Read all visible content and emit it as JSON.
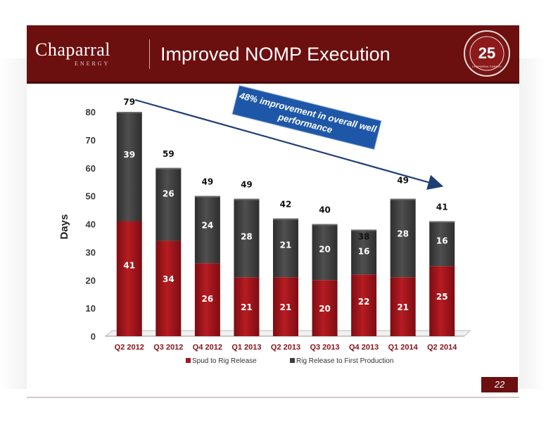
{
  "header": {
    "logo_name": "Chaparral",
    "logo_sub": "ENERGY",
    "title": "Improved NOMP Execution",
    "seal_number": "25",
    "seal_text": "CHAPARRAL ENERGY"
  },
  "page_number": "22",
  "colors": {
    "header_band": "#6b0f0f",
    "series_spud": "#a6171c",
    "series_release": "#3e3e3e",
    "callout_bg": "#1f57a8",
    "arrow": "#1f3f77"
  },
  "callout": {
    "text_line1": "48% improvement in overall well",
    "text_line2": "performance"
  },
  "chart_data": {
    "type": "bar",
    "stacked": true,
    "ylabel": "Days",
    "ylim": [
      0,
      80
    ],
    "yticks": [
      0,
      10,
      20,
      30,
      40,
      50,
      60,
      70,
      80
    ],
    "categories": [
      "Q2 2012",
      "Q3 2012",
      "Q4 2012",
      "Q1 2013",
      "Q2 2013",
      "Q3 2013",
      "Q4 2013",
      "Q1 2014",
      "Q2 2014"
    ],
    "series": [
      {
        "name": "Spud to Rig Release",
        "values": [
          41,
          34,
          26,
          21,
          21,
          20,
          22,
          21,
          25
        ]
      },
      {
        "name": "Rig Release to First Production",
        "values": [
          39,
          26,
          24,
          28,
          21,
          20,
          16,
          28,
          16
        ]
      }
    ],
    "totals": [
      79,
      59,
      49,
      49,
      42,
      40,
      38,
      49,
      41
    ],
    "legend_position": "bottom",
    "grid": false
  }
}
